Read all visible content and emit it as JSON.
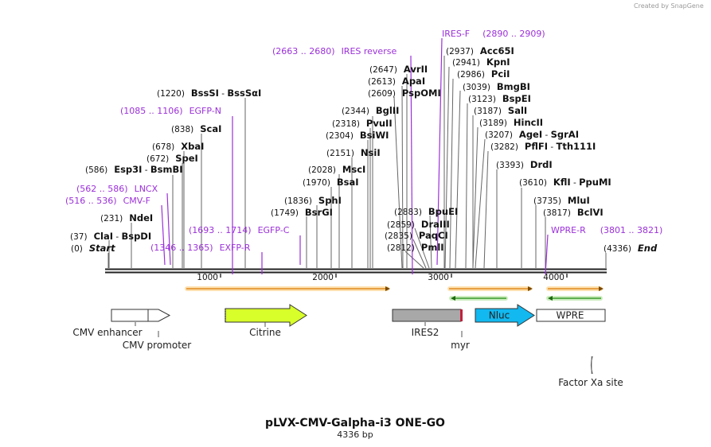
{
  "credit": "Created by SnapGene",
  "plasmid": {
    "name": "pLVX-CMV-Galpha-i3 ONE-GO",
    "size": "4336 bp",
    "length": 4336
  },
  "ruler": {
    "ticks": [
      "1000",
      "2000",
      "3000",
      "4000"
    ]
  },
  "labels": [
    {
      "pos": "(0)",
      "parts": [
        {
          "t": "Start",
          "i": true
        }
      ]
    },
    {
      "pos": "(37)",
      "parts": [
        {
          "t": "ClaI"
        },
        {
          "t": " - ",
          "sep": true
        },
        {
          "t": "BspDI"
        }
      ]
    },
    {
      "pos": "(231)",
      "parts": [
        {
          "t": "NdeI"
        }
      ]
    },
    {
      "pos": "(586)",
      "parts": [
        {
          "t": "Esp3I"
        },
        {
          "t": " - ",
          "sep": true
        },
        {
          "t": "BsmBI"
        }
      ]
    },
    {
      "pos": "(672)",
      "parts": [
        {
          "t": "SpeI"
        }
      ]
    },
    {
      "pos": "(678)",
      "parts": [
        {
          "t": "XbaI"
        }
      ]
    },
    {
      "pos": "(838)",
      "parts": [
        {
          "t": "ScaI"
        }
      ]
    },
    {
      "pos": "(1220)",
      "parts": [
        {
          "t": "BssSI"
        },
        {
          "t": " - ",
          "sep": true
        },
        {
          "t": "BssSαI"
        }
      ]
    },
    {
      "pos": "(1749)",
      "parts": [
        {
          "t": "BsrGI"
        }
      ]
    },
    {
      "pos": "(1836)",
      "parts": [
        {
          "t": "SphI"
        }
      ]
    },
    {
      "pos": "(1970)",
      "parts": [
        {
          "t": "BsaI"
        }
      ]
    },
    {
      "pos": "(2028)",
      "parts": [
        {
          "t": "MscI"
        }
      ]
    },
    {
      "pos": "(2151)",
      "parts": [
        {
          "t": "NsiI"
        }
      ]
    },
    {
      "pos": "(2304)",
      "parts": [
        {
          "t": "BsiWI"
        }
      ]
    },
    {
      "pos": "(2318)",
      "parts": [
        {
          "t": "PvuII"
        }
      ]
    },
    {
      "pos": "(2344)",
      "parts": [
        {
          "t": "BglII"
        }
      ]
    },
    {
      "pos": "(2609)",
      "parts": [
        {
          "t": "PspOMI"
        }
      ]
    },
    {
      "pos": "(2613)",
      "parts": [
        {
          "t": "ApaI"
        }
      ]
    },
    {
      "pos": "(2647)",
      "parts": [
        {
          "t": "AvrII"
        }
      ]
    },
    {
      "pos": "(2812)",
      "parts": [
        {
          "t": "PmlI"
        }
      ]
    },
    {
      "pos": "(2835)",
      "parts": [
        {
          "t": "PaqCI"
        }
      ]
    },
    {
      "pos": "(2859)",
      "parts": [
        {
          "t": "DraIII"
        }
      ]
    },
    {
      "pos": "(2883)",
      "parts": [
        {
          "t": "BpuEI"
        }
      ]
    },
    {
      "pos": "(2937)",
      "parts": [
        {
          "t": "Acc65I"
        }
      ]
    },
    {
      "pos": "(2941)",
      "parts": [
        {
          "t": "KpnI"
        }
      ]
    },
    {
      "pos": "(2986)",
      "parts": [
        {
          "t": "PciI"
        }
      ]
    },
    {
      "pos": "(3039)",
      "parts": [
        {
          "t": "BmgBI"
        }
      ]
    },
    {
      "pos": "(3123)",
      "parts": [
        {
          "t": "BspEI"
        }
      ]
    },
    {
      "pos": "(3187)",
      "parts": [
        {
          "t": "SalI"
        }
      ]
    },
    {
      "pos": "(3189)",
      "parts": [
        {
          "t": "HincII"
        }
      ]
    },
    {
      "pos": "(3207)",
      "parts": [
        {
          "t": "AgeI"
        },
        {
          "t": " - ",
          "sep": true
        },
        {
          "t": "SgrAI"
        }
      ]
    },
    {
      "pos": "(3282)",
      "parts": [
        {
          "t": "PflFI"
        },
        {
          "t": " - ",
          "sep": true
        },
        {
          "t": "Tth111I"
        }
      ]
    },
    {
      "pos": "(3393)",
      "parts": [
        {
          "t": "DrdI"
        }
      ]
    },
    {
      "pos": "(3610)",
      "parts": [
        {
          "t": "KflI"
        },
        {
          "t": " - ",
          "sep": true
        },
        {
          "t": "PpuMI"
        }
      ]
    },
    {
      "pos": "(3735)",
      "parts": [
        {
          "t": "MluI"
        }
      ]
    },
    {
      "pos": "(3817)",
      "parts": [
        {
          "t": "BclVI"
        }
      ]
    },
    {
      "pos": "(4336)",
      "parts": [
        {
          "t": "End",
          "i": true
        }
      ]
    }
  ],
  "primers": [
    {
      "name": "IRES reverse",
      "range": "(2663 .. 2680)"
    },
    {
      "name": "IRES-F",
      "range": "(2890 .. 2909)"
    },
    {
      "name": "EGFP-N",
      "range": "(1085 .. 1106)"
    },
    {
      "name": "LNCX",
      "range": "(562 .. 586)"
    },
    {
      "name": "CMV-F",
      "range": "(516 .. 536)"
    },
    {
      "name": "EGFP-C",
      "range": "(1693 .. 1714)"
    },
    {
      "name": "EXFP-R",
      "range": "(1346 .. 1365)"
    },
    {
      "name": "WPRE-R",
      "range": "(3801 .. 3821)"
    }
  ],
  "features": [
    {
      "name": "CMV enhancer"
    },
    {
      "name": "CMV promoter"
    },
    {
      "name": "Citrine"
    },
    {
      "name": "IRES2"
    },
    {
      "name": "myr"
    },
    {
      "name": "Nluc"
    },
    {
      "name": "WPRE"
    },
    {
      "name": "Factor Xa site"
    }
  ],
  "colors": {
    "enzyme_line": "#666666",
    "primer": "#9b30d9",
    "orf": "#f0a030",
    "primer_green": "#3a9a2a",
    "citrine": "#d8ff2a",
    "nluc": "#12b8f0",
    "ires": "#a8a8a8"
  }
}
